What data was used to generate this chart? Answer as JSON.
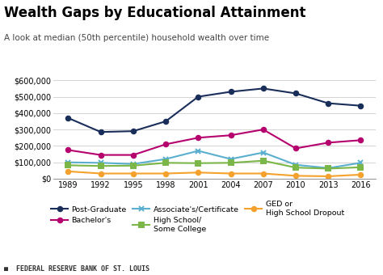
{
  "title": "Wealth Gaps by Educational Attainment",
  "subtitle": "A look at median (50th percentile) household wealth over time",
  "footer": "■  FEDERAL RESERVE BANK OF ST. LOUIS",
  "years": [
    1989,
    1992,
    1995,
    1998,
    2001,
    2004,
    2007,
    2010,
    2013,
    2016
  ],
  "series": [
    {
      "label": "Post-Graduate",
      "values": [
        370000,
        285000,
        290000,
        350000,
        500000,
        530000,
        550000,
        520000,
        460000,
        445000
      ],
      "color": "#1a2e5a",
      "marker": "o",
      "markersize": 4
    },
    {
      "label": "Bachelor's",
      "values": [
        175000,
        145000,
        145000,
        210000,
        250000,
        265000,
        300000,
        185000,
        220000,
        235000
      ],
      "color": "#b5006e",
      "marker": "o",
      "markersize": 4
    },
    {
      "label": "Associate's/Certificate",
      "values": [
        100000,
        97000,
        90000,
        120000,
        170000,
        120000,
        160000,
        85000,
        65000,
        97000
      ],
      "color": "#5aafcf",
      "marker": "x",
      "markersize": 5
    },
    {
      "label": "High School/\nSome College",
      "values": [
        82000,
        78000,
        80000,
        97000,
        95000,
        97000,
        110000,
        68000,
        62000,
        70000
      ],
      "color": "#7ab648",
      "marker": "s",
      "markersize": 4
    },
    {
      "label": "GED or\nHigh School Dropout",
      "values": [
        45000,
        32000,
        32000,
        32000,
        38000,
        32000,
        32000,
        18000,
        15000,
        25000
      ],
      "color": "#f4a22d",
      "marker": "o",
      "markersize": 4
    }
  ],
  "ylim": [
    0,
    620000
  ],
  "yticks": [
    0,
    100000,
    200000,
    300000,
    400000,
    500000,
    600000
  ],
  "background_color": "#ffffff",
  "plot_bg_color": "#ffffff",
  "grid_color": "#cccccc",
  "title_fontsize": 12,
  "subtitle_fontsize": 7.5,
  "tick_fontsize": 7,
  "legend_fontsize": 6.8,
  "footer_fontsize": 6
}
